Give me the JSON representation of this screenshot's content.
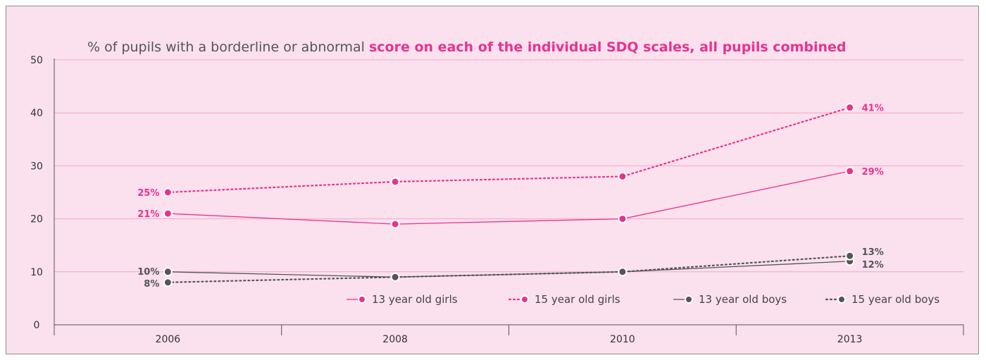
{
  "chart_data": {
    "type": "line",
    "title_plain": "% of pupils with a borderline or abnormal ",
    "title_highlight": "score on each of the individual SDQ scales, all pupils combined",
    "categories": [
      "2006",
      "2008",
      "2010",
      "2013"
    ],
    "ylim": [
      0,
      50
    ],
    "yticks": [
      "0",
      "10",
      "20",
      "30",
      "40",
      "50"
    ],
    "grid": true,
    "legend_position": "bottom-right",
    "series": [
      {
        "name": "13 year old girls",
        "values": [
          21,
          19,
          20,
          29
        ],
        "color": "#e8338c",
        "dash": "solid",
        "labels": [
          "21%",
          null,
          null,
          "29%"
        ]
      },
      {
        "name": "15 year old girls",
        "values": [
          25,
          27,
          28,
          41
        ],
        "color": "#e8338c",
        "dash": "dotted",
        "labels": [
          "25%",
          null,
          null,
          "41%"
        ]
      },
      {
        "name": "13 year old boys",
        "values": [
          10,
          9,
          10,
          12
        ],
        "color": "#555555",
        "dash": "solid",
        "labels": [
          "10%",
          null,
          null,
          "12%"
        ]
      },
      {
        "name": "15 year old boys",
        "values": [
          8,
          9,
          10,
          13
        ],
        "color": "#555555",
        "dash": "dotted",
        "labels": [
          "8%",
          null,
          null,
          "13%"
        ]
      }
    ]
  }
}
